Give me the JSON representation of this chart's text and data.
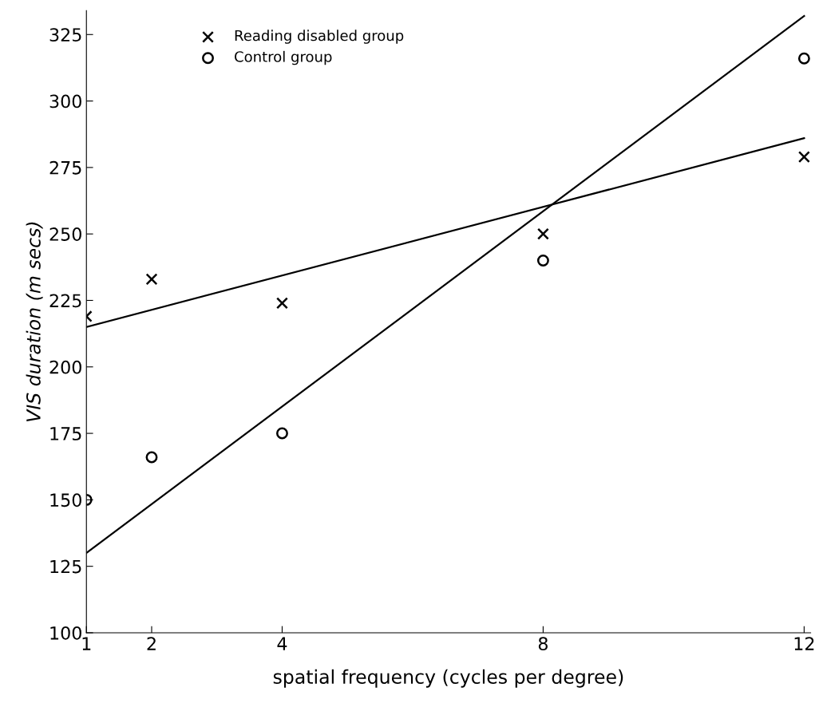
{
  "chart_data": {
    "type": "scatter",
    "xlabel": "spatial frequency (cycles per degree)",
    "ylabel": "VIS duration (m secs)",
    "xlim": [
      1,
      12.1
    ],
    "xticks": [
      1,
      2,
      4,
      8,
      12
    ],
    "ylim": [
      100,
      334
    ],
    "yticks": [
      100,
      125,
      150,
      175,
      200,
      225,
      250,
      275,
      300,
      325
    ],
    "grid": false,
    "legend": "top left",
    "series": [
      {
        "name": "Reading disabled group",
        "color": "#000000",
        "marker": "cross",
        "x": [
          1,
          2,
          4,
          8,
          12
        ],
        "values": [
          219,
          233,
          224,
          250,
          279
        ]
      },
      {
        "name": "Control group",
        "color": "#000000",
        "marker": "circle",
        "x": [
          1,
          2,
          4,
          8,
          12
        ],
        "values": [
          150,
          166,
          175,
          240,
          316
        ]
      },
      {
        "type": "line",
        "color": "#000000",
        "line_style": "solid",
        "x": [
          1,
          12
        ],
        "values": [
          215,
          286
        ]
      },
      {
        "type": "line",
        "color": "#000000",
        "line_style": "solid",
        "x": [
          1,
          12
        ],
        "values": [
          130,
          332
        ]
      }
    ]
  }
}
